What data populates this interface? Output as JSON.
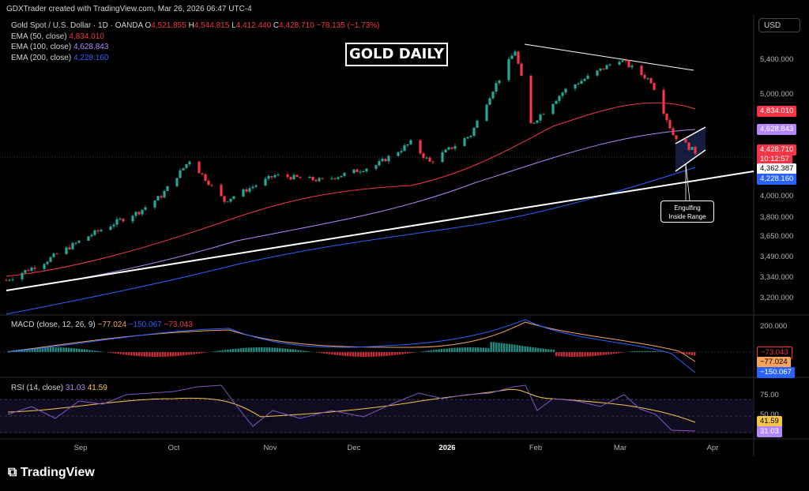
{
  "header": "GDXTrader created with TradingView.com, Mar 26, 2026 06:47 UTC-4",
  "symbol": {
    "name": "Gold Spot / U.S. Dollar · 1D · OANDA",
    "open_label": "O",
    "open": "4,521.855",
    "high_label": "H",
    "high": "4,544.815",
    "low_label": "L",
    "low": "4,412.440",
    "close_label": "C",
    "close": "4,428.710",
    "change": "−78.135 (−1.73%)"
  },
  "indicators": [
    {
      "label": "EMA (50, close)",
      "value": "4,834.010",
      "color": "#f23645"
    },
    {
      "label": "EMA (100, close)",
      "value": "4,628.843",
      "color": "#b388ff"
    },
    {
      "label": "EMA (200, close)",
      "value": "4,228.160",
      "color": "#2962ff"
    }
  ],
  "currency": "USD",
  "chart_title": "GOLD DAILY",
  "annotation": {
    "line1": "Engulfing",
    "line2": "Inside Range"
  },
  "price_tags": {
    "ema50": "4,834.010",
    "ema100": "4,628.843",
    "last": "4,428.710",
    "countdown": "10:12:57",
    "level": "4,362.387",
    "ema200": "4,228.160"
  },
  "macd": {
    "label": "MACD (close, 12, 26, 9)",
    "macd": "−77.024",
    "signal": "−150.067",
    "hist": "−73.043",
    "tags": [
      "−73.043",
      "−77.024",
      "−150.067"
    ]
  },
  "rsi": {
    "label": "RSI (14, close)",
    "value": "31.03",
    "ma": "41.59",
    "tags": [
      "41.59",
      "31.03"
    ]
  },
  "logo": "TradingView",
  "chart_data": {
    "type": "candlestick",
    "y_ticks": [
      5400,
      5000,
      4000,
      3800,
      3650,
      3490,
      3340,
      3200
    ],
    "y_tick_labels": [
      "5,400.000",
      "5,000.000",
      "4,000.000",
      "3,800.000",
      "3,650.000",
      "3,490.000",
      "3,340.000",
      "3,200.000"
    ],
    "x_tick_labels": [
      "Sep",
      "Oct",
      "Nov",
      "Dec",
      "2026",
      "Feb",
      "Mar",
      "Apr"
    ],
    "macd_ticks": [
      "200.000"
    ],
    "rsi_ticks": [
      "75.00",
      "50.00",
      "25.00"
    ],
    "price_series": [
      [
        "2025-08-20",
        3320
      ],
      [
        "2025-09-01",
        3450
      ],
      [
        "2025-09-15",
        3650
      ],
      [
        "2025-10-01",
        3850
      ],
      [
        "2025-10-08",
        4000
      ],
      [
        "2025-10-17",
        4350
      ],
      [
        "2025-10-28",
        3950
      ],
      [
        "2025-11-13",
        4200
      ],
      [
        "2025-11-28",
        4150
      ],
      [
        "2025-12-15",
        4300
      ],
      [
        "2025-12-26",
        4520
      ],
      [
        "2026-01-01",
        4330
      ],
      [
        "2026-01-14",
        4600
      ],
      [
        "2026-01-28",
        5500
      ],
      [
        "2026-02-02",
        4700
      ],
      [
        "2026-02-13",
        5050
      ],
      [
        "2026-03-02",
        5400
      ],
      [
        "2026-03-12",
        5150
      ],
      [
        "2026-03-19",
        4600
      ],
      [
        "2026-03-26",
        4428
      ]
    ]
  }
}
